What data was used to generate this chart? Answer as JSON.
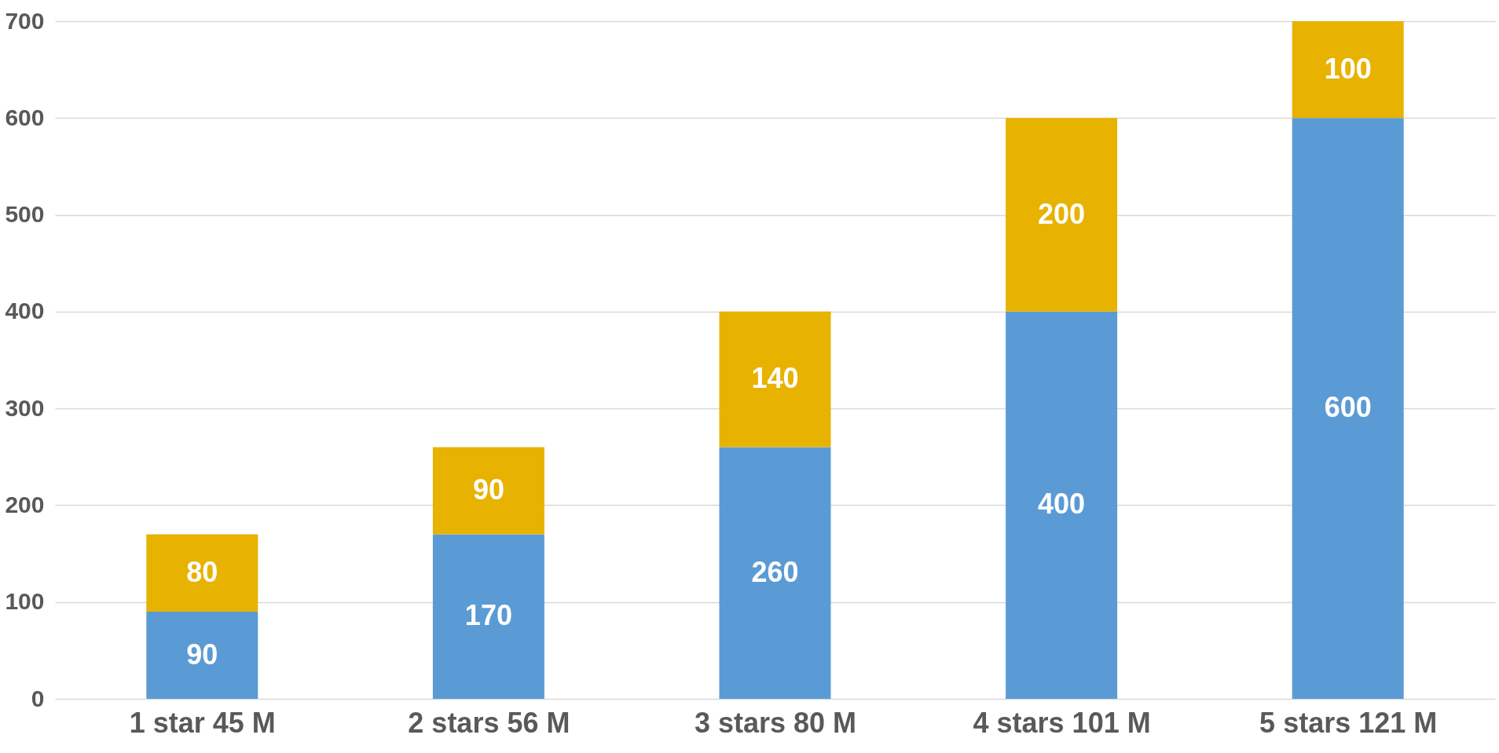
{
  "chart_data": {
    "type": "bar",
    "stacked": true,
    "categories": [
      "1 star 45 M",
      "2 stars 56 M",
      "3 stars 80 M",
      "4 stars 101 M",
      "5 stars 121 M"
    ],
    "series": [
      {
        "color": "#5b9bd5",
        "values": [
          90,
          170,
          260,
          400,
          600
        ]
      },
      {
        "color": "#e8b200",
        "values": [
          80,
          90,
          140,
          200,
          100
        ]
      }
    ],
    "ylim": [
      0,
      700
    ],
    "yticks": [
      0,
      100,
      200,
      300,
      400,
      500,
      600,
      700
    ],
    "grid": "y",
    "data_labels": true
  }
}
